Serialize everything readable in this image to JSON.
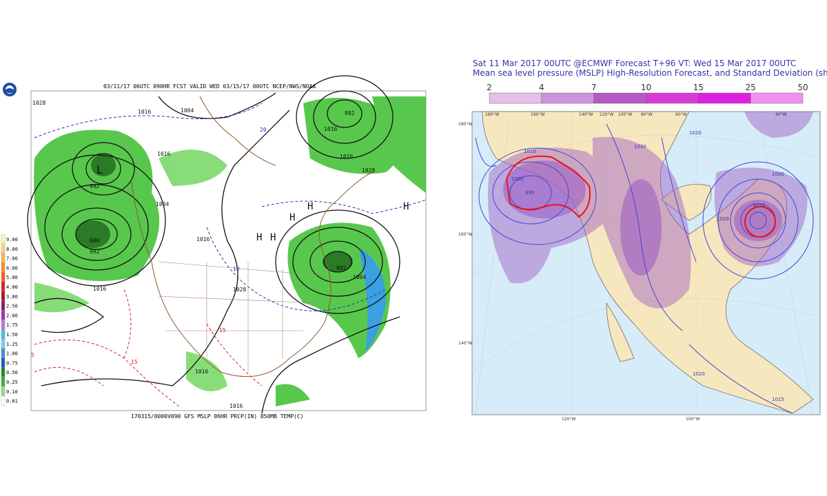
{
  "left_map": {
    "header": "03/11/17 06UTC  090HR  FCST VALID WED 03/15/17 00UTC    NCEP/NWS/NOAA",
    "footer": "170315/0000V090 GFS MSLP 06HR PRCP(IN) 850MB TEMP(C)",
    "legend": [
      "9.00",
      "8.00",
      "7.00",
      "6.00",
      "5.00",
      "4.00",
      "3.00",
      "2.50",
      "2.00",
      "1.75",
      "1.50",
      "1.25",
      "1.00",
      "0.75",
      "0.50",
      "0.25",
      "0.10",
      "0.01"
    ],
    "labels": [
      "1028",
      "1016",
      "1004",
      "992",
      "L",
      "992",
      "980",
      "1016",
      "1004",
      "1016",
      "1016",
      "1028",
      "H",
      "H",
      "H",
      "H",
      "H",
      "992",
      "1004",
      "1016",
      "1016",
      "1016",
      "1016",
      "992",
      "1028",
      "15",
      "15",
      "5",
      "10",
      "20"
    ]
  },
  "right_map": {
    "title": "Sat 11 Mar 2017 00UTC @ECMWF Forecast T+96 VT: Wed 15 Mar 2017 00UTC",
    "subtitle": "Mean sea level pressure (MSLP) High-Resolution Forecast, and Standard Deviation (shaded)",
    "colorbar": [
      "2",
      "4",
      "7",
      "10",
      "15",
      "25",
      "50"
    ],
    "lon_top": [
      "180°W",
      "160°W",
      "140°W",
      "120°W",
      "100°W",
      "80°W",
      "60°W",
      "40°W"
    ],
    "lon_bottom": [
      "120°W",
      "100°W"
    ],
    "lat_left": [
      "180°W",
      "160°W",
      "140°W"
    ],
    "contours": [
      "1000",
      "990",
      "1010",
      "1020",
      "1030",
      "1000",
      "1010",
      "1020",
      "1020",
      "1015"
    ]
  }
}
